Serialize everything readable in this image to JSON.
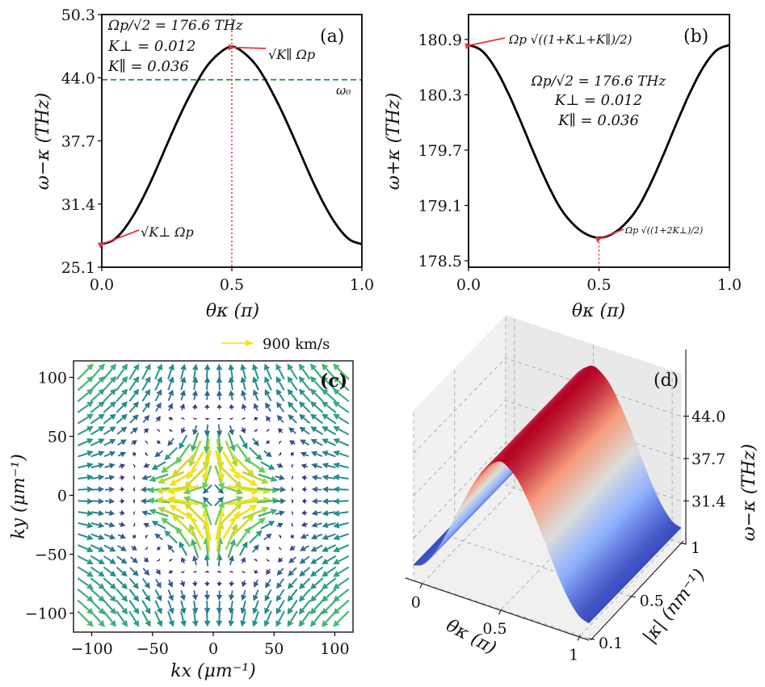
{
  "chart_data": [
    {
      "id": "a",
      "type": "line",
      "panel_label": "(a)",
      "title": "",
      "xlabel": "θκ (π)",
      "ylabel": "ω−κ (THz)",
      "xlim": [
        0.0,
        1.0
      ],
      "ylim": [
        25.1,
        50.3
      ],
      "xticks": [
        "0.0",
        "0.5",
        "1.0"
      ],
      "xtick_values": [
        0.0,
        0.5,
        1.0
      ],
      "yticks": [
        "25.1",
        "31.4",
        "37.7",
        "44.0",
        "50.3"
      ],
      "ytick_values": [
        25.1,
        31.4,
        37.7,
        44.0,
        50.3
      ],
      "series": [
        {
          "name": "ω−κ",
          "color": "#000000",
          "x": [
            0.0,
            0.05,
            0.1,
            0.15,
            0.2,
            0.25,
            0.3,
            0.35,
            0.4,
            0.45,
            0.5,
            0.55,
            0.6,
            0.65,
            0.7,
            0.75,
            0.8,
            0.85,
            0.9,
            0.95,
            1.0
          ],
          "y": [
            27.4,
            27.9,
            29.4,
            31.6,
            34.3,
            37.3,
            40.2,
            42.8,
            45.0,
            46.4,
            47.1,
            46.4,
            45.0,
            42.8,
            40.2,
            37.3,
            34.3,
            31.6,
            29.4,
            27.9,
            27.4
          ]
        }
      ],
      "hlines": [
        {
          "name": "ω0",
          "y": 43.8,
          "color": "#2e8b3e",
          "style": "dashed",
          "label": "ω₀"
        }
      ],
      "vlines": [
        {
          "x": 0.5,
          "color": "#e8323c",
          "style": "dotted"
        }
      ],
      "annotations": [
        {
          "text": "Ωp/√2 = 176.6 THz",
          "position": "top-left"
        },
        {
          "text": "K⊥ = 0.012",
          "position": "top-left"
        },
        {
          "text": "K∥ = 0.036",
          "position": "top-left"
        },
        {
          "text": "√K∥ Ωp",
          "points_to": [
            0.5,
            47.1
          ],
          "arrow_color": "#e8323c"
        },
        {
          "text": "√K⊥ Ωp",
          "points_to": [
            0.0,
            27.4
          ],
          "arrow_color": "#e8323c"
        }
      ]
    },
    {
      "id": "b",
      "type": "line",
      "panel_label": "(b)",
      "title": "",
      "xlabel": "θκ (π)",
      "ylabel": "ω+κ (THz)",
      "xlim": [
        0.0,
        1.0
      ],
      "ylim": [
        178.43,
        181.17
      ],
      "xticks": [
        "0.0",
        "0.5",
        "1.0"
      ],
      "xtick_values": [
        0.0,
        0.5,
        1.0
      ],
      "yticks": [
        "178.5",
        "179.1",
        "179.7",
        "180.3",
        "180.9"
      ],
      "ytick_values": [
        178.5,
        179.1,
        179.7,
        180.3,
        180.9
      ],
      "series": [
        {
          "name": "ω+κ",
          "color": "#000000",
          "x": [
            0.0,
            0.05,
            0.1,
            0.15,
            0.2,
            0.25,
            0.3,
            0.35,
            0.4,
            0.45,
            0.5,
            0.55,
            0.6,
            0.65,
            0.7,
            0.75,
            0.8,
            0.85,
            0.9,
            0.95,
            1.0
          ],
          "y": [
            180.84,
            180.78,
            180.6,
            180.33,
            180.01,
            179.67,
            179.35,
            179.08,
            178.9,
            178.79,
            178.75,
            178.79,
            178.9,
            179.08,
            179.35,
            179.67,
            180.01,
            180.33,
            180.6,
            180.78,
            180.84
          ]
        }
      ],
      "vlines": [
        {
          "x": 0.5,
          "color": "#e8323c",
          "style": "dotted",
          "to_curve": true
        }
      ],
      "annotations": [
        {
          "text": "Ωp/√2 = 176.6 THz",
          "position": "center"
        },
        {
          "text": "K⊥ = 0.012",
          "position": "center"
        },
        {
          "text": "K∥ = 0.036",
          "position": "center"
        },
        {
          "text": "Ωp √((1+K⊥+K∥)/2)",
          "points_to": [
            0.0,
            180.84
          ],
          "arrow_color": "#e8323c"
        },
        {
          "text": "Ωp √((1+2K⊥)/2)",
          "points_to": [
            0.5,
            178.75
          ],
          "arrow_color": "#e8323c"
        }
      ]
    },
    {
      "id": "c",
      "type": "quiver",
      "panel_label": "(c)",
      "title": "",
      "xlabel": "kx (μm⁻¹)",
      "ylabel": "ky (μm⁻¹)",
      "xlim": [
        -115,
        115
      ],
      "ylim": [
        -116,
        114
      ],
      "xticks": [
        "−100",
        "−50",
        "0",
        "50",
        "100"
      ],
      "xtick_values": [
        -100,
        -50,
        0,
        50,
        100
      ],
      "yticks": [
        "−100",
        "−50",
        "0",
        "50",
        "100"
      ],
      "ytick_values": [
        -100,
        -50,
        0,
        50,
        100
      ],
      "grid_start": -105,
      "grid_step": 10,
      "grid_count": 22,
      "colormap": "viridis",
      "key": {
        "label": "900 km/s",
        "speed": 900,
        "color": "#f5e21b"
      },
      "pattern": "antisymmetric dipole: near origin v ∥ (kx, −ky); far field v ∥ (−kx, ky); peak speed ≈ 900 km/s at |k| ≈ 30 μm⁻¹"
    },
    {
      "id": "d",
      "type": "surface3d",
      "panel_label": "(d)",
      "title": "",
      "xlabel": "θκ (π)",
      "ylabel": "|κ| (nm⁻¹)",
      "zlabel": "ω−κ (THz)",
      "xticks": [
        "0",
        "0.5",
        "1"
      ],
      "xtick_values": [
        0,
        0.5,
        1
      ],
      "yticks": [
        "0.1",
        "0.5",
        "1"
      ],
      "ytick_values": [
        0.1,
        0.5,
        1
      ],
      "zticks": [
        "31.4",
        "37.7",
        "44.0"
      ],
      "ztick_values": [
        31.4,
        37.7,
        44.0
      ],
      "zlim": [
        25.1,
        50.3
      ],
      "colormap": "coolwarm",
      "surface": "ω−κ(θ) from panel (a), constant along |κ|"
    }
  ]
}
